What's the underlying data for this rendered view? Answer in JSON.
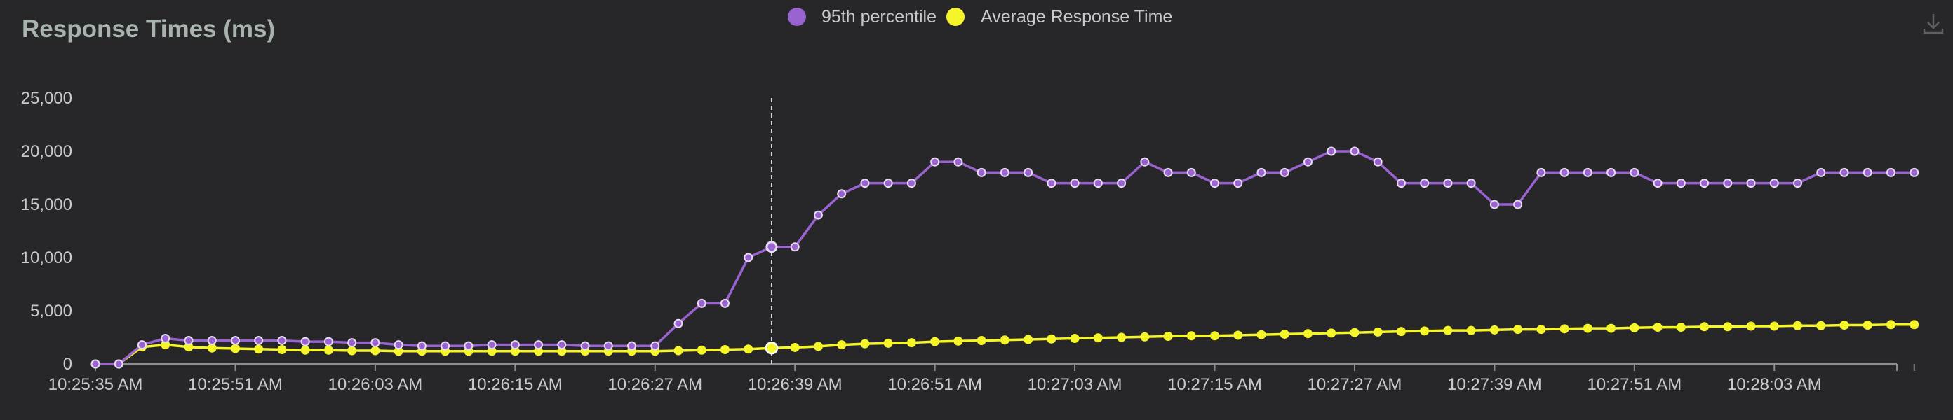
{
  "title": "Response Times (ms)",
  "download": {
    "icon": "download-icon"
  },
  "colors": {
    "background": "#27272a",
    "p95": "#9b63d2",
    "avg": "#f5f52a",
    "axis": "#8a8a8f",
    "text": "#c9c9cc",
    "title": "#a9b3ad"
  },
  "chart_data": {
    "type": "line",
    "title": "Response Times (ms)",
    "legend_position": "top-center",
    "grid": false,
    "ylim": [
      0,
      25000
    ],
    "yticks": [
      0,
      5000,
      10000,
      15000,
      20000,
      25000
    ],
    "ytick_labels": [
      "0",
      "5,000",
      "10,000",
      "15,000",
      "20,000",
      "25,000"
    ],
    "xtick_labels": [
      "10:25:35 AM",
      "10:25:51 AM",
      "10:26:03 AM",
      "10:26:15 AM",
      "10:26:27 AM",
      "10:26:39 AM",
      "10:26:51 AM",
      "10:27:03 AM",
      "10:27:15 AM",
      "10:27:27 AM",
      "10:27:39 AM",
      "10:27:51 AM",
      "10:28:03 AM"
    ],
    "hover_index": 29,
    "series": [
      {
        "name": "95th percentile",
        "color": "#9b63d2",
        "values": [
          0,
          0,
          1800,
          2400,
          2200,
          2200,
          2200,
          2200,
          2200,
          2100,
          2100,
          2000,
          2000,
          1800,
          1700,
          1700,
          1700,
          1800,
          1800,
          1800,
          1800,
          1700,
          1700,
          1700,
          1700,
          3800,
          5700,
          5700,
          10000,
          11000,
          11000,
          14000,
          16000,
          17000,
          17000,
          17000,
          19000,
          19000,
          18000,
          18000,
          18000,
          17000,
          17000,
          17000,
          17000,
          19000,
          18000,
          18000,
          17000,
          17000,
          18000,
          18000,
          19000,
          20000,
          20000,
          19000,
          17000,
          17000,
          17000,
          17000,
          15000,
          15000,
          18000,
          18000,
          18000,
          18000,
          18000,
          17000,
          17000,
          17000,
          17000,
          17000,
          17000,
          17000,
          18000,
          18000,
          18000,
          18000,
          18000
        ]
      },
      {
        "name": "Average Response Time",
        "color": "#f5f52a",
        "values": [
          0,
          0,
          1600,
          1800,
          1600,
          1500,
          1450,
          1400,
          1350,
          1300,
          1300,
          1250,
          1250,
          1200,
          1200,
          1200,
          1200,
          1200,
          1200,
          1200,
          1200,
          1200,
          1200,
          1200,
          1200,
          1250,
          1300,
          1350,
          1400,
          1500,
          1550,
          1650,
          1800,
          1900,
          1950,
          2000,
          2100,
          2150,
          2200,
          2250,
          2300,
          2350,
          2400,
          2450,
          2500,
          2550,
          2600,
          2650,
          2650,
          2700,
          2750,
          2800,
          2850,
          2900,
          2950,
          3000,
          3050,
          3100,
          3150,
          3150,
          3200,
          3250,
          3250,
          3300,
          3350,
          3350,
          3400,
          3450,
          3450,
          3500,
          3500,
          3550,
          3550,
          3600,
          3600,
          3650,
          3650,
          3700,
          3700
        ]
      }
    ]
  }
}
